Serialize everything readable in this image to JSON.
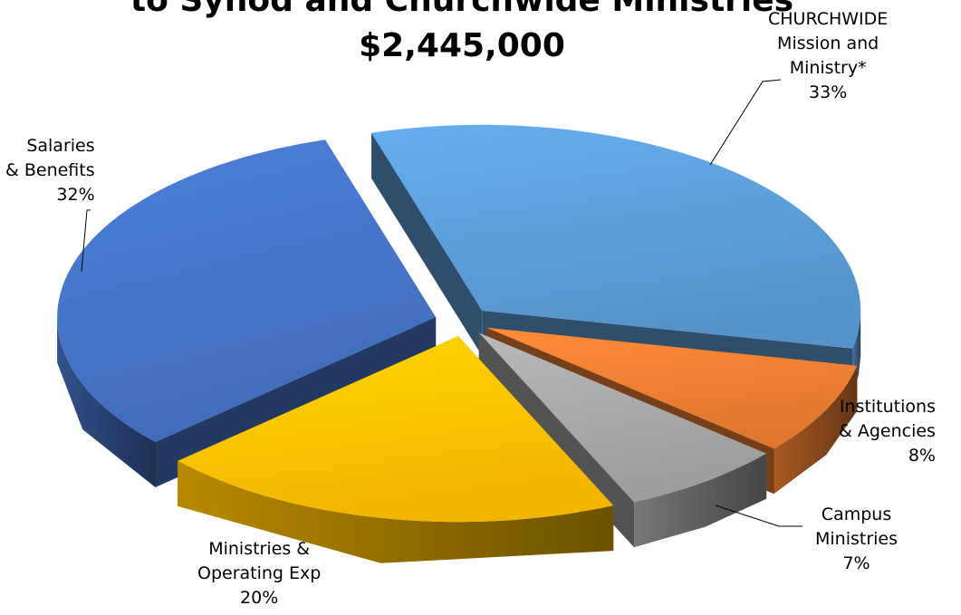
{
  "chart_data": {
    "type": "pie",
    "title_lines": [
      "to Synod and Churchwide Ministries",
      "$2,445,000"
    ],
    "slices": [
      {
        "name_lines": [
          "CHURCHWIDE",
          "Mission and",
          "Ministry*"
        ],
        "value": 33,
        "label": "33%",
        "color": "#5B9BD5"
      },
      {
        "name_lines": [
          "Institutions",
          "& Agencies"
        ],
        "value": 8,
        "label": "8%",
        "color": "#ED7D31"
      },
      {
        "name_lines": [
          "Campus",
          "Ministries"
        ],
        "value": 7,
        "label": "7%",
        "color": "#A5A5A5"
      },
      {
        "name_lines": [
          "Ministries &",
          "Operating Exp"
        ],
        "value": 20,
        "label": "20%",
        "color": "#FFC000"
      },
      {
        "name_lines": [
          "Salaries",
          "& Benefits"
        ],
        "value": 32,
        "label": "32%",
        "color": "#4472C4"
      }
    ]
  }
}
